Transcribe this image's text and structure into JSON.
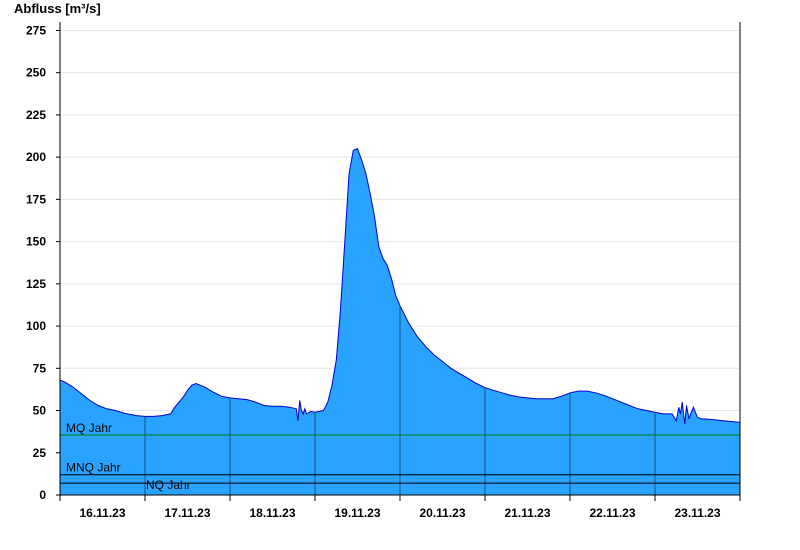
{
  "chart_data": {
    "type": "area",
    "ylabel": "Abfluss [m³/s]",
    "ylim": [
      0,
      280
    ],
    "yticks": [
      0,
      25,
      50,
      75,
      100,
      125,
      150,
      175,
      200,
      225,
      250,
      275
    ],
    "xlim": [
      0,
      8
    ],
    "xticks": [
      {
        "x": 0.5,
        "label": "16.11.23"
      },
      {
        "x": 1.5,
        "label": "17.11.23"
      },
      {
        "x": 2.5,
        "label": "18.11.23"
      },
      {
        "x": 3.5,
        "label": "19.11.23"
      },
      {
        "x": 4.5,
        "label": "20.11.23"
      },
      {
        "x": 5.5,
        "label": "21.11.23"
      },
      {
        "x": 6.5,
        "label": "22.11.23"
      },
      {
        "x": 7.5,
        "label": "23.11.23"
      }
    ],
    "day_boundaries": [
      1,
      2,
      3,
      4,
      5,
      6,
      7
    ],
    "grid": "horizontal",
    "fill_color": "#29a3ff",
    "line_color": "#0000cc",
    "series": [
      {
        "name": "",
        "x": [
          0,
          0.05,
          0.15,
          0.25,
          0.35,
          0.45,
          0.55,
          0.65,
          0.75,
          0.85,
          0.9,
          1.0,
          1.1,
          1.2,
          1.3,
          1.35,
          1.45,
          1.5,
          1.55,
          1.6,
          1.7,
          1.8,
          1.9,
          2.0,
          2.1,
          2.2,
          2.3,
          2.4,
          2.5,
          2.6,
          2.7,
          2.78,
          2.8,
          2.82,
          2.84,
          2.86,
          2.88,
          2.9,
          2.95,
          3.0,
          3.05,
          3.1,
          3.15,
          3.2,
          3.25,
          3.3,
          3.35,
          3.4,
          3.45,
          3.5,
          3.55,
          3.6,
          3.65,
          3.7,
          3.75,
          3.8,
          3.85,
          3.9,
          3.95,
          4.0,
          4.05,
          4.1,
          4.15,
          4.2,
          4.3,
          4.4,
          4.5,
          4.6,
          4.7,
          4.8,
          4.9,
          5.0,
          5.1,
          5.2,
          5.3,
          5.4,
          5.5,
          5.6,
          5.7,
          5.8,
          5.9,
          6.0,
          6.1,
          6.2,
          6.3,
          6.4,
          6.5,
          6.6,
          6.7,
          6.8,
          6.9,
          7.0,
          7.1,
          7.2,
          7.25,
          7.28,
          7.3,
          7.32,
          7.35,
          7.37,
          7.4,
          7.42,
          7.45,
          7.5,
          7.55,
          7.6,
          7.7,
          7.8,
          7.9,
          8.0
        ],
        "values": [
          68,
          67,
          64,
          60,
          56,
          53,
          51,
          50,
          48.5,
          47.5,
          47,
          46.5,
          46.5,
          47,
          48,
          52,
          58,
          62,
          65,
          66,
          64,
          61,
          58.5,
          57.5,
          57,
          56.5,
          55,
          53,
          52.5,
          52.5,
          52,
          51,
          44,
          56,
          50,
          48,
          51,
          48,
          49.5,
          49,
          49.5,
          50,
          55,
          65,
          80,
          110,
          150,
          190,
          204,
          205,
          198,
          190,
          178,
          165,
          147,
          140,
          136,
          128,
          118,
          112,
          107,
          102,
          98,
          94,
          88,
          83,
          79,
          75,
          72,
          69,
          66,
          63.5,
          62,
          60.5,
          59,
          58,
          57.5,
          57,
          57,
          57,
          58.5,
          60.5,
          61.5,
          61.5,
          60.5,
          59,
          57,
          55,
          53,
          51,
          50,
          49,
          48,
          48,
          44,
          52,
          48,
          55,
          42,
          53,
          45,
          48,
          52,
          46,
          45,
          45,
          44.5,
          44,
          43.5,
          43
        ]
      }
    ],
    "reference_lines": [
      {
        "label": "MQ Jahr",
        "value": 35.5,
        "color": "#008000"
      },
      {
        "label": "MNQ Jahr",
        "value": 12,
        "color": "#000000"
      },
      {
        "label": "NQ Jahr",
        "value": 7,
        "color": "#000000"
      }
    ]
  }
}
